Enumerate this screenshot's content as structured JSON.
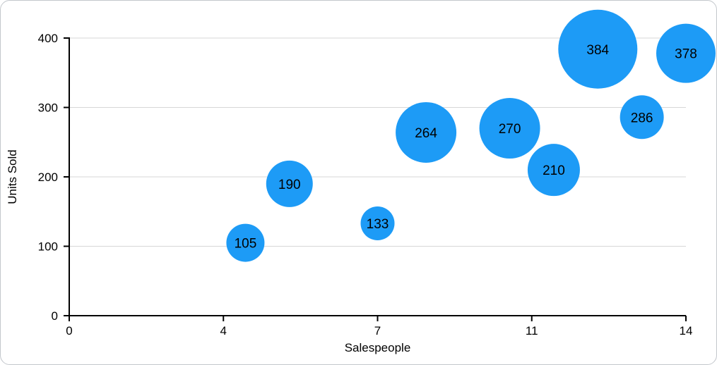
{
  "figure": {
    "background": "#ffffff",
    "border_color": "#c3c7cc"
  },
  "chart_data": {
    "type": "scatter",
    "variant": "bubble",
    "title": "",
    "xlabel": "Salespeople",
    "ylabel": "Units Sold",
    "xlim": [
      0,
      14
    ],
    "ylim": [
      0,
      400
    ],
    "x_tick_labels": [
      "0",
      "4",
      "7",
      "11",
      "14"
    ],
    "y_ticks": [
      0,
      100,
      200,
      300,
      400
    ],
    "grid": "horizontal",
    "legend": "none",
    "colors": {
      "bubble": "#1d9bf6",
      "grid": "#d7d7d7",
      "axis": "#000000",
      "text": "#000000"
    },
    "points": [
      {
        "x": 4,
        "y": 105,
        "label": "105",
        "r": 27
      },
      {
        "x": 5,
        "y": 190,
        "label": "190",
        "r": 33
      },
      {
        "x": 7,
        "y": 133,
        "label": "133",
        "r": 24
      },
      {
        "x": 8.1,
        "y": 264,
        "label": "264",
        "r": 43
      },
      {
        "x": 10,
        "y": 270,
        "label": "270",
        "r": 43
      },
      {
        "x": 11,
        "y": 210,
        "label": "210",
        "r": 37
      },
      {
        "x": 12,
        "y": 384,
        "label": "384",
        "r": 56
      },
      {
        "x": 13,
        "y": 286,
        "label": "286",
        "r": 31
      },
      {
        "x": 14,
        "y": 378,
        "label": "378",
        "r": 42
      }
    ]
  }
}
